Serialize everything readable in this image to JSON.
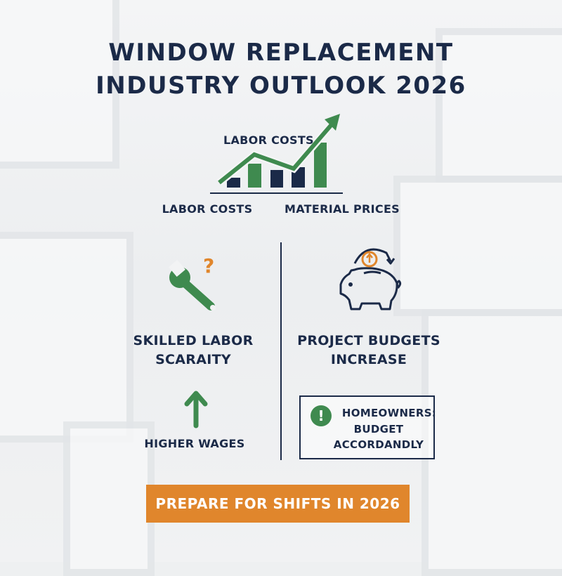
{
  "title": {
    "line1": "WINDOW REPLACEMENT",
    "line2": "INDUSTRY OUTLOOK 2026"
  },
  "chart_graphic": {
    "inner_label": "LABOR COSTS",
    "left_label": "LABOR COSTS",
    "right_label": "MATERIAL PRICES",
    "trend": "rising"
  },
  "left_panel": {
    "heading_line1": "SKILLED LABOR",
    "heading_line2": "SCARAITY",
    "icon": "wrench-question-icon",
    "sub_icon": "up-arrow-icon",
    "sub_label": "HIGHER WAGES"
  },
  "right_panel": {
    "heading_line1": "PROJECT BUDGETS",
    "heading_line2": "INCREASE",
    "icon": "piggy-bank-icon",
    "callout": {
      "icon": "exclamation-icon",
      "line1": "HOMEOWNERS:",
      "line2": "BUDGET",
      "line3": "ACCORDANDLY"
    }
  },
  "banner": {
    "label": "PREPARE FOR SHIFTS IN 2026"
  },
  "colors": {
    "navy": "#1b2a48",
    "green": "#3f8a4f",
    "orange": "#e0862c"
  }
}
